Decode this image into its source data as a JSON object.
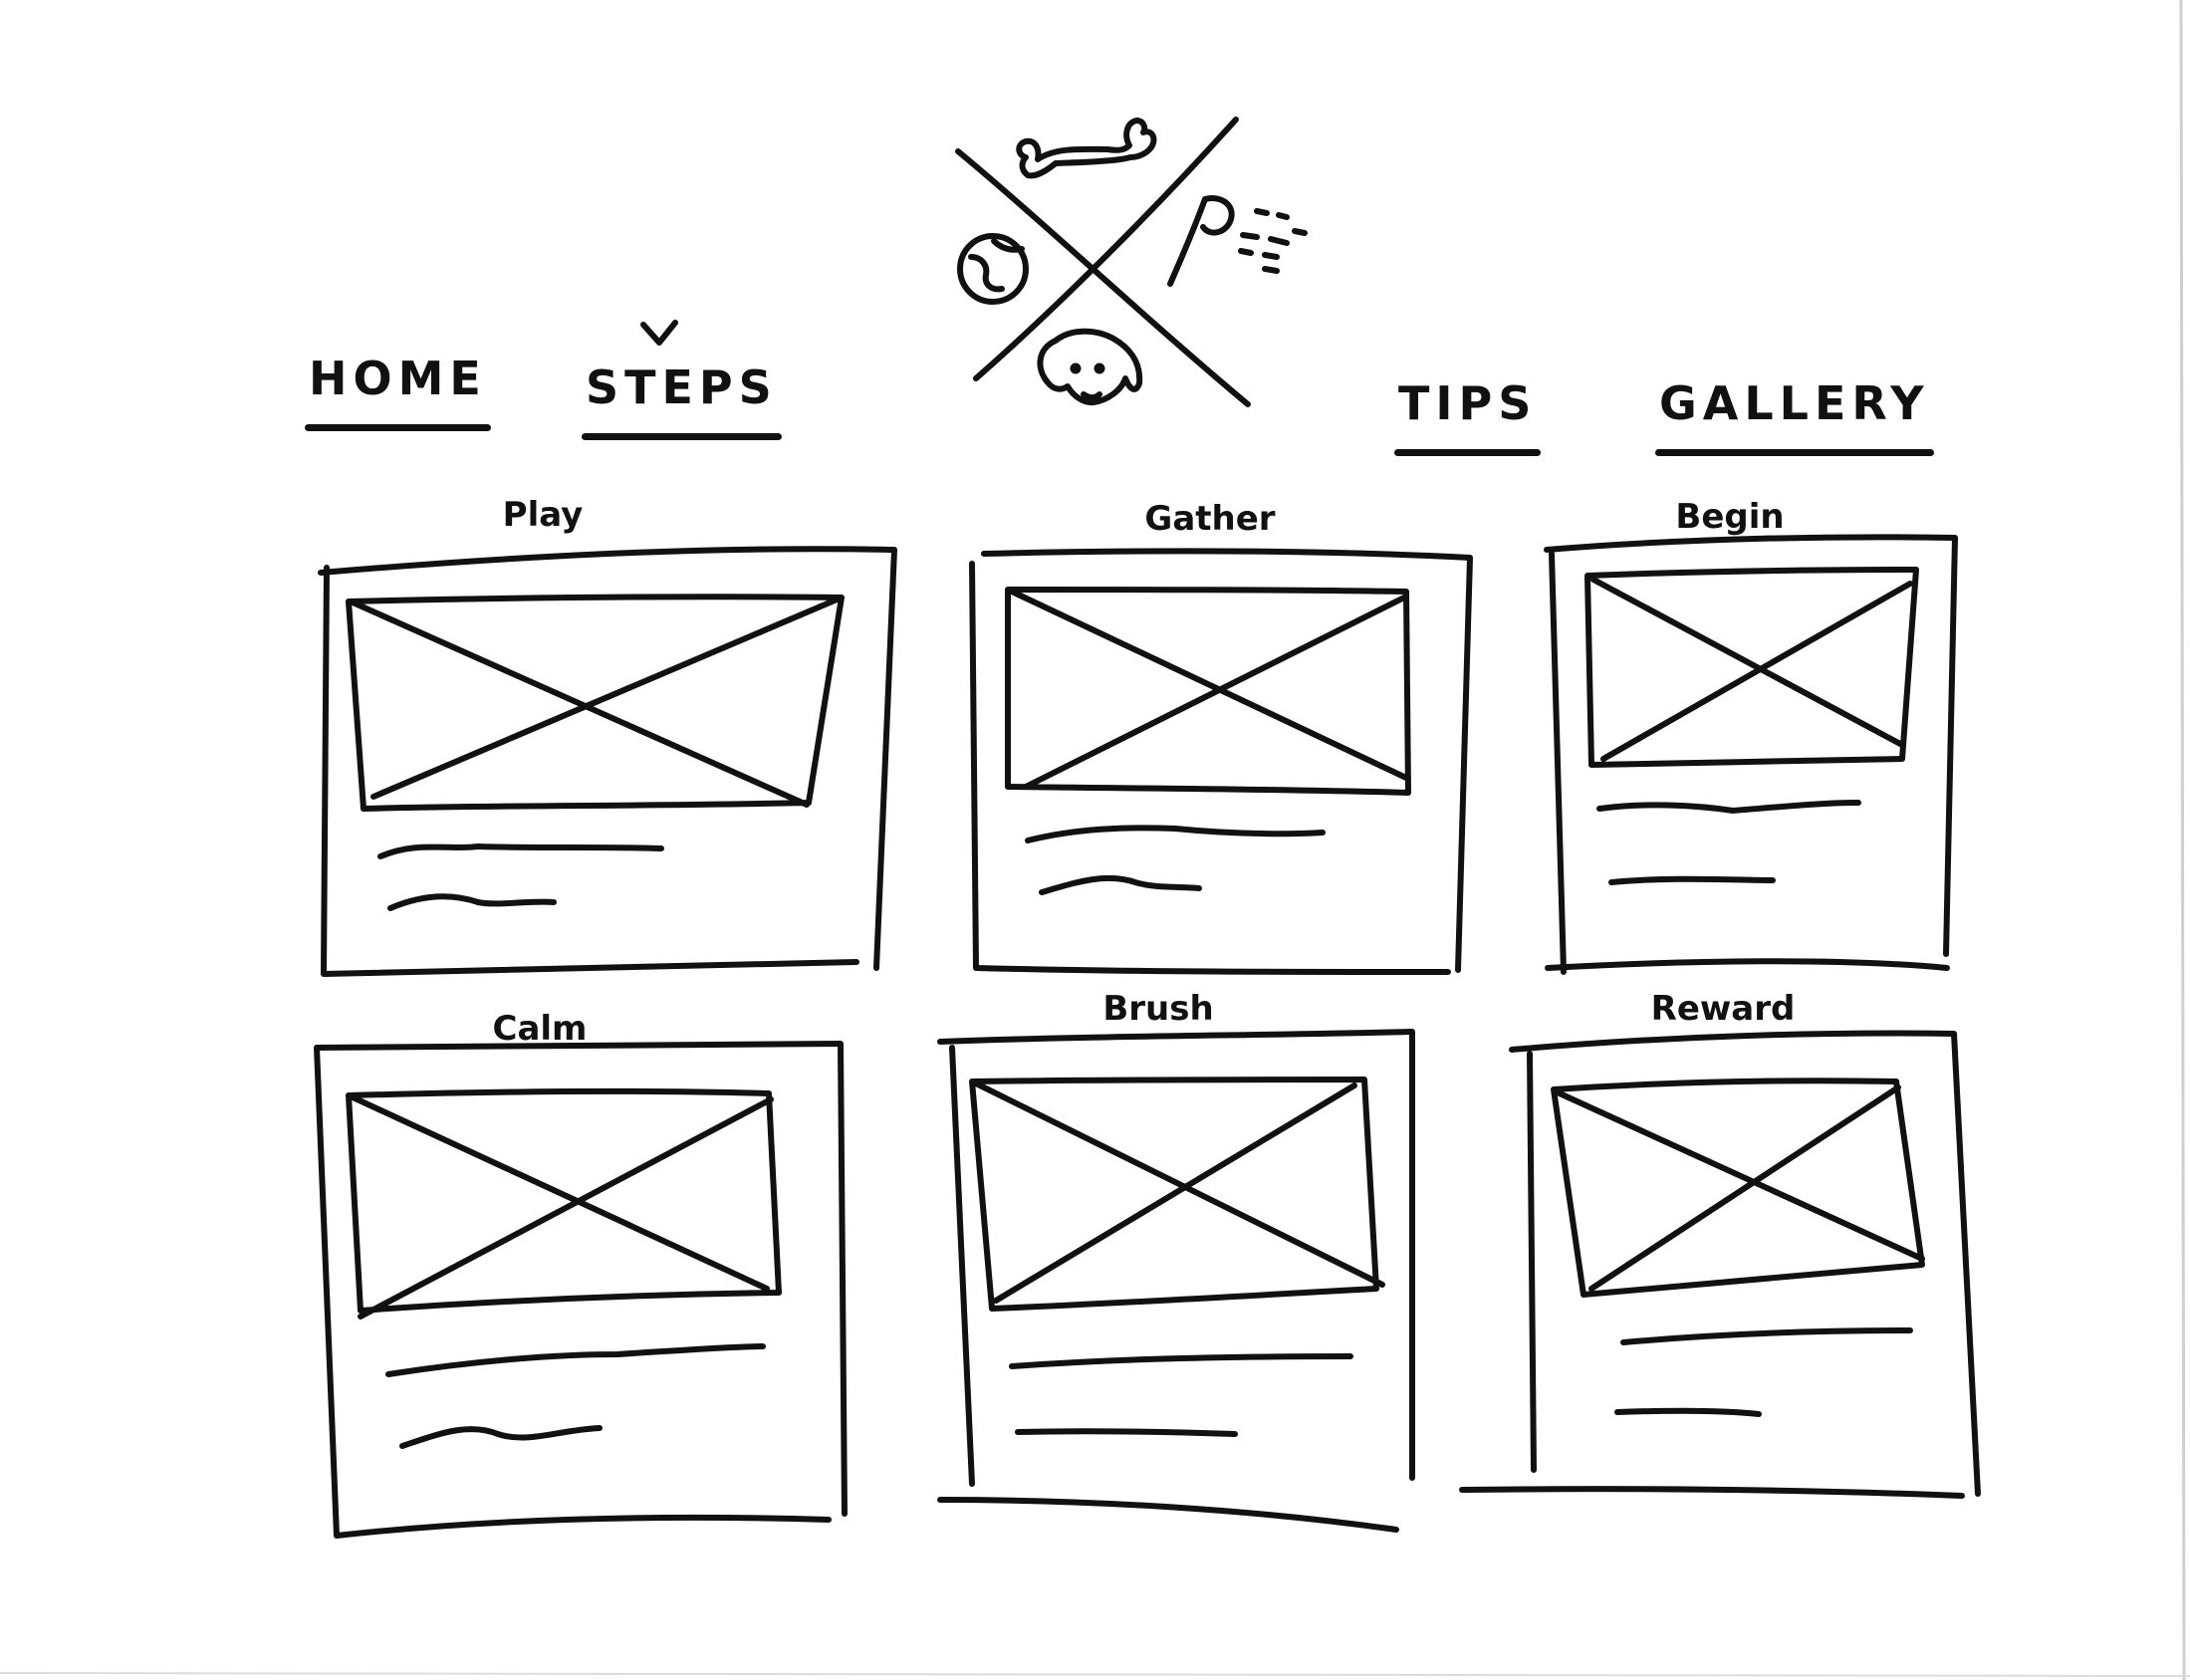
{
  "nav": {
    "items": [
      {
        "label": "HOME"
      },
      {
        "label": "STEPS"
      },
      {
        "label": "TIPS"
      },
      {
        "label": "GALLERY"
      }
    ],
    "active_mark": "check-icon"
  },
  "logo": {
    "icons": [
      "bone-icon",
      "ball-icon",
      "spray-bottle-icon",
      "dog-face-icon"
    ]
  },
  "cards": [
    {
      "title": "Play",
      "image": "image-placeholder-icon"
    },
    {
      "title": "Gather",
      "image": "image-placeholder-icon"
    },
    {
      "title": "Begin",
      "image": "image-placeholder-icon"
    },
    {
      "title": "Calm",
      "image": "image-placeholder-icon"
    },
    {
      "title": "Brush",
      "image": "image-placeholder-icon"
    },
    {
      "title": "Reward",
      "image": "image-placeholder-icon"
    }
  ],
  "colors": {
    "ink": "#111111",
    "paper": "#ffffff"
  }
}
